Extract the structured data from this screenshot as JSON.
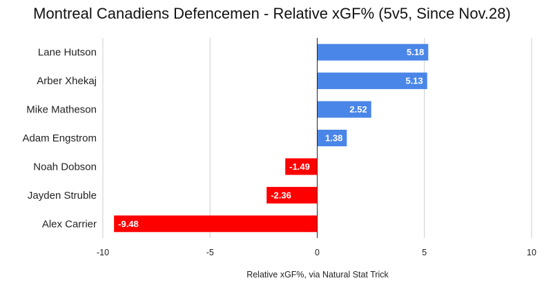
{
  "chart_data": {
    "type": "bar",
    "orientation": "horizontal",
    "title": "Montreal Canadiens Defencemen - Relative xGF% (5v5, Since Nov.28)",
    "xlabel": "Relative xGF%, via Natural Stat Trick",
    "ylabel": "",
    "categories": [
      "Lane Hutson",
      "Arber Xhekaj",
      "Mike Matheson",
      "Adam Engstrom",
      "Noah Dobson",
      "Jayden Struble",
      "Alex Carrier"
    ],
    "values": [
      5.18,
      5.13,
      2.52,
      1.38,
      -1.49,
      -2.36,
      -9.48
    ],
    "data_labels": [
      "5.18",
      "5.13",
      "2.52",
      "1.38",
      "-1.49",
      "-2.36",
      "-9.48"
    ],
    "xlim": [
      -10,
      10
    ],
    "xticks": [
      -10,
      -5,
      0,
      5,
      10
    ],
    "xtick_labels": [
      "-10",
      "-5",
      "0",
      "5",
      "10"
    ],
    "grid": true,
    "legend": "none",
    "colors": {
      "positive": "#4a86e8",
      "negative": "#ff0000",
      "grid": "#cccccc",
      "zero_line": "#222222"
    }
  }
}
